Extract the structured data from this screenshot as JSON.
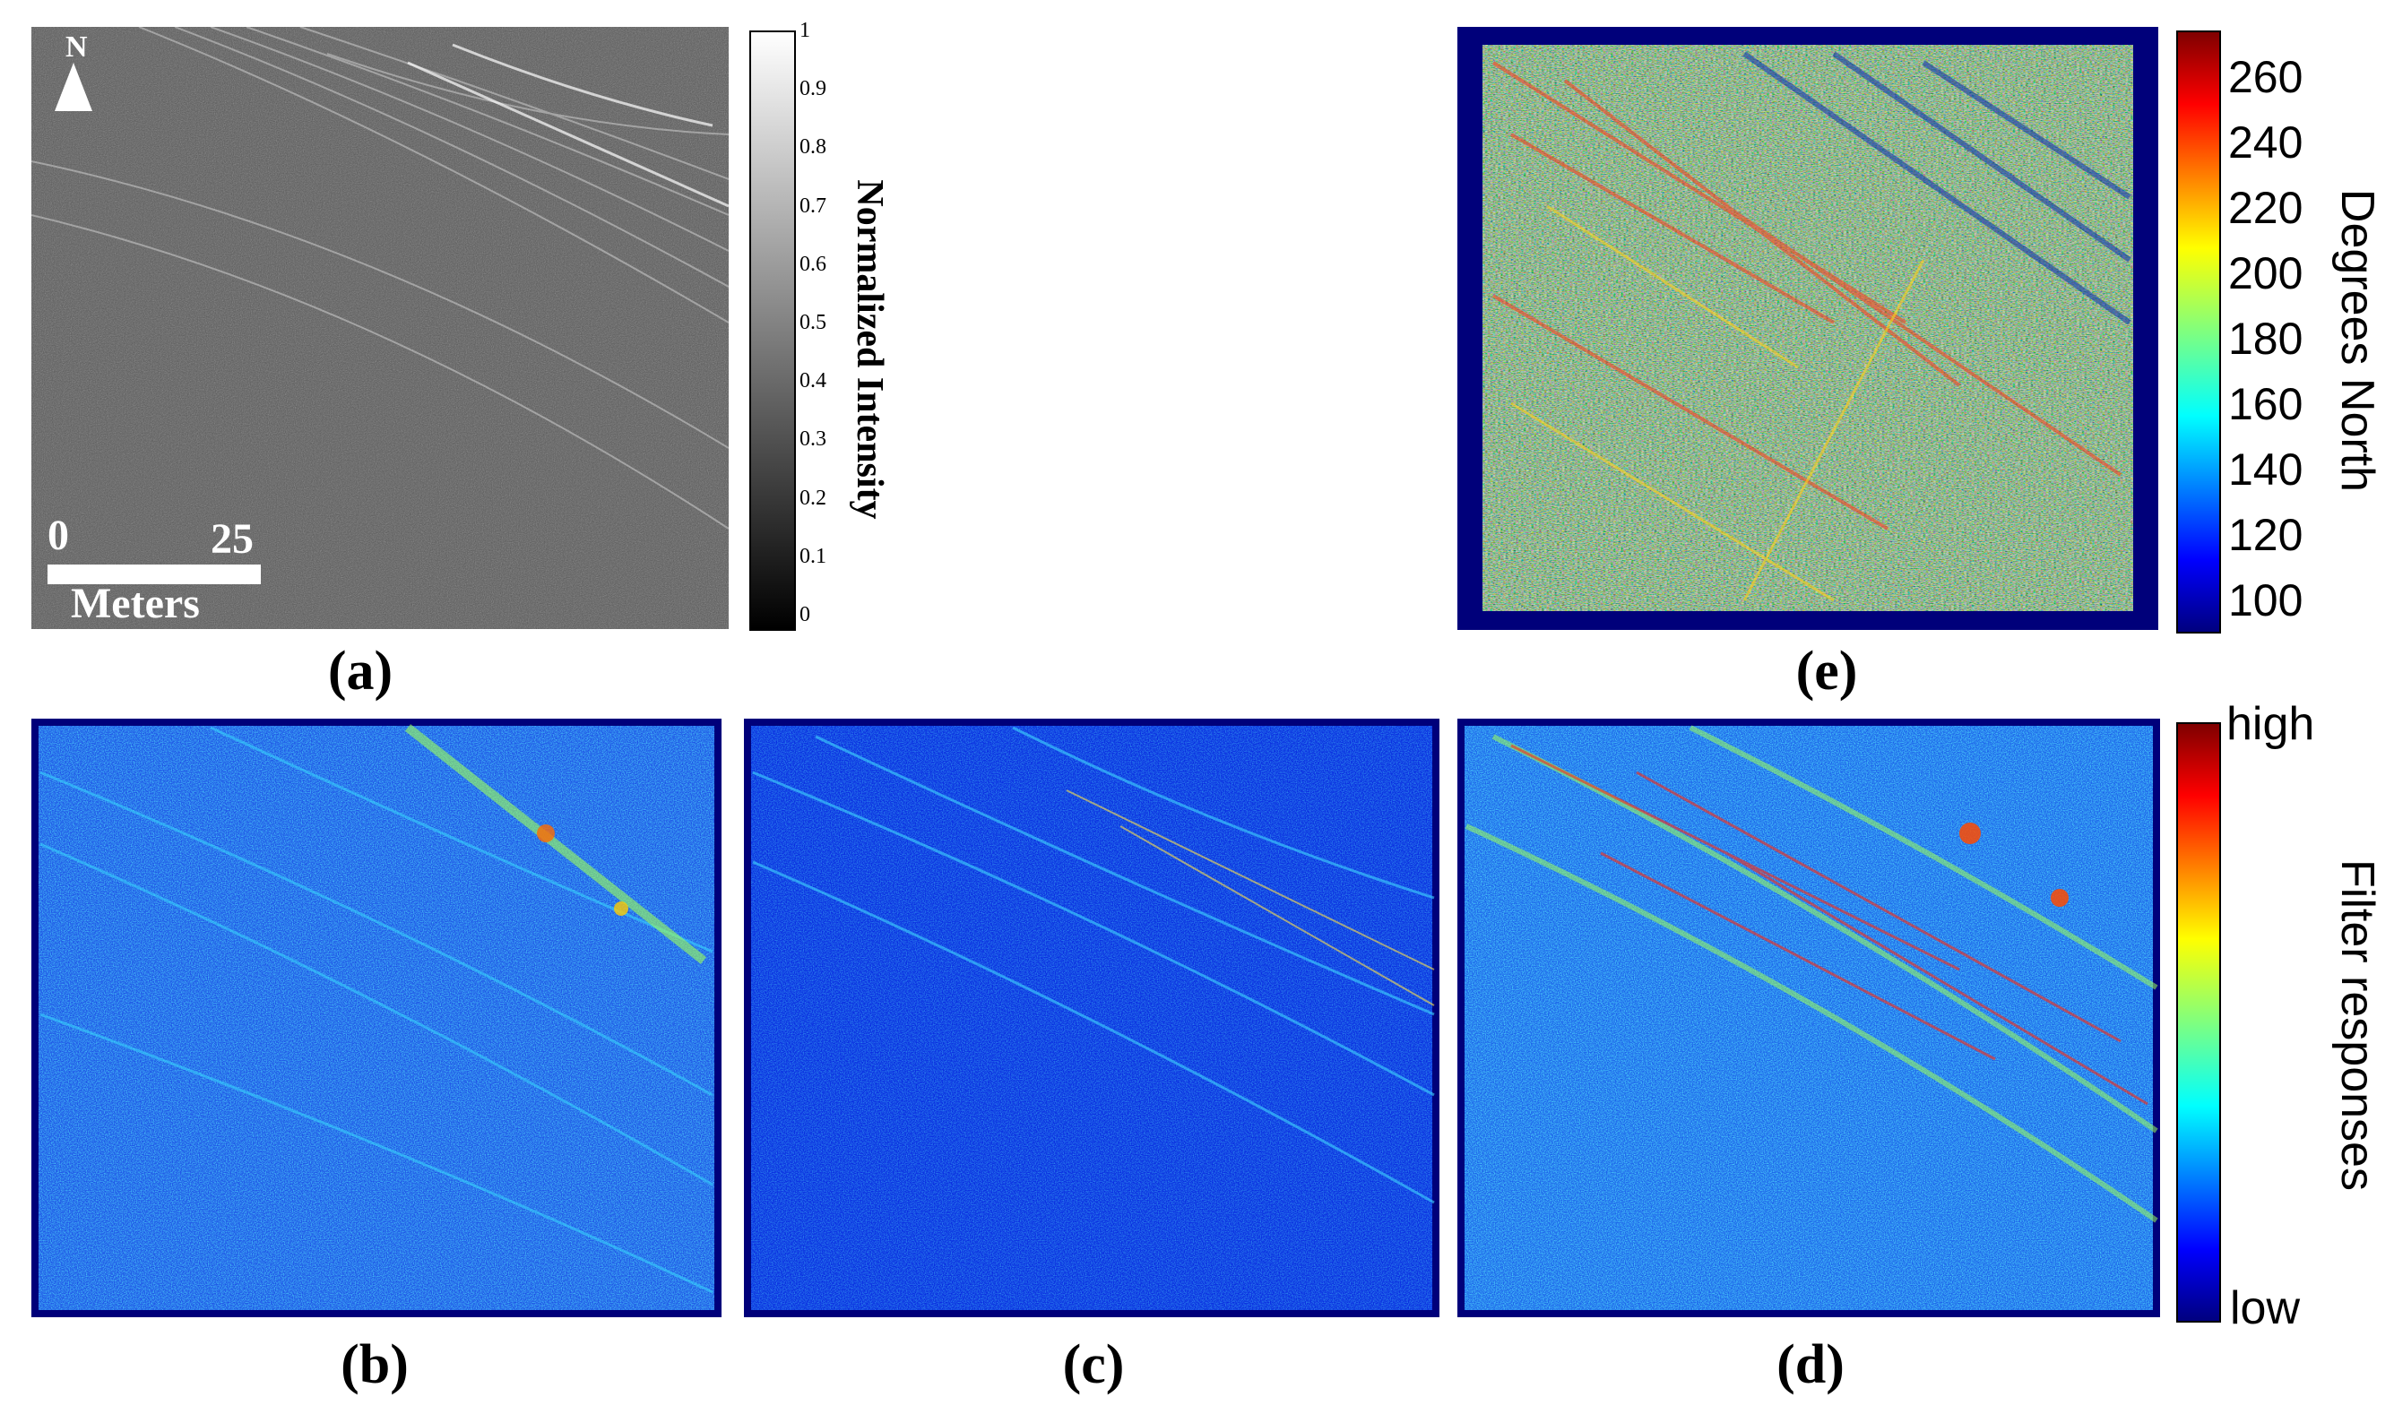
{
  "figure": {
    "panels": {
      "a": {
        "caption": "(a)",
        "north_label": "N",
        "scale_bar": {
          "start": "0",
          "end": "25",
          "unit": "Meters"
        },
        "colorbar": {
          "title": "Normalized Intensity",
          "ticks": [
            "1",
            "0.9",
            "0.8",
            "0.7",
            "0.6",
            "0.5",
            "0.4",
            "0.3",
            "0.2",
            "0.1",
            "0"
          ],
          "colors": {
            "top": "#ffffff",
            "bottom": "#000000"
          }
        }
      },
      "b": {
        "caption": "(b)"
      },
      "c": {
        "caption": "(c)"
      },
      "d": {
        "caption": "(d)"
      },
      "e": {
        "caption": "(e)",
        "colorbar": {
          "title": "Degrees North",
          "ticks": [
            "260",
            "240",
            "220",
            "200",
            "180",
            "160",
            "140",
            "120",
            "100"
          ]
        }
      }
    },
    "filter_colorbar": {
      "title": "Filter responses",
      "high_label": "high",
      "low_label": "low"
    },
    "colors": {
      "jet": [
        "#00007f",
        "#0000ff",
        "#007fff",
        "#00ffff",
        "#7fff7f",
        "#ffff00",
        "#ff7f00",
        "#ff0000",
        "#7f0000"
      ],
      "panel_border": "#00007a"
    }
  }
}
